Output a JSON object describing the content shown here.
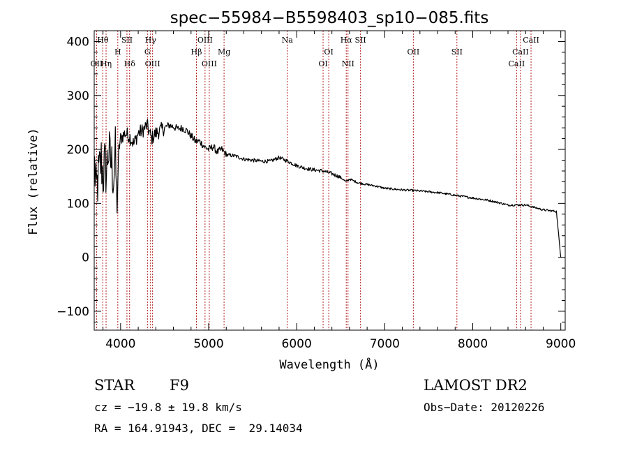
{
  "chart_data": {
    "type": "line",
    "title": "spec−55984−B5598403_sp10−085.fits",
    "xlabel": "Wavelength (Å)",
    "ylabel": "Flux (relative)",
    "xlim": [
      3700,
      9050
    ],
    "ylim": [
      -135,
      420
    ],
    "xticks": [
      4000,
      5000,
      6000,
      7000,
      8000,
      9000
    ],
    "yticks": [
      -100,
      0,
      100,
      200,
      300,
      400
    ],
    "grid": false,
    "line_color": "#000000",
    "marker_color": "#b22222",
    "series": [
      {
        "x": [
          3705,
          3720,
          3740,
          3760,
          3780,
          3800,
          3820,
          3840,
          3860,
          3880,
          3900,
          3920,
          3940,
          3960,
          3980,
          4000,
          4050,
          4100,
          4150,
          4200,
          4250,
          4300,
          4350,
          4400,
          4450,
          4500,
          4550,
          4600,
          4650,
          4700,
          4750,
          4800,
          4850,
          4900,
          4950,
          5000,
          5050,
          5100,
          5150,
          5200,
          5300,
          5400,
          5500,
          5600,
          5700,
          5800,
          5900,
          6000,
          6100,
          6200,
          6300,
          6400,
          6500,
          6560,
          6600,
          6700,
          6800,
          6900,
          7000,
          7200,
          7400,
          7600,
          7800,
          8000,
          8200,
          8400,
          8600,
          8800,
          8950,
          9000
        ],
        "y": [
          170,
          120,
          140,
          160,
          180,
          150,
          170,
          160,
          200,
          180,
          170,
          150,
          190,
          90,
          200,
          220,
          230,
          225,
          210,
          230,
          235,
          245,
          220,
          230,
          235,
          240,
          245,
          242,
          238,
          240,
          235,
          225,
          215,
          215,
          205,
          200,
          205,
          195,
          200,
          190,
          188,
          182,
          180,
          178,
          178,
          185,
          178,
          170,
          165,
          162,
          160,
          155,
          148,
          140,
          145,
          138,
          135,
          132,
          128,
          125,
          123,
          120,
          115,
          110,
          105,
          97,
          97,
          88,
          85,
          0
        ]
      }
    ],
    "lines": [
      {
        "name": "Hθ",
        "x": 3798,
        "row": 1
      },
      {
        "name": "OII",
        "x": 3727,
        "row": 3
      },
      {
        "name": "Hη",
        "x": 3835,
        "row": 3
      },
      {
        "name": "H",
        "x": 3968,
        "row": 2
      },
      {
        "name": "SII",
        "x": 4072,
        "row": 1
      },
      {
        "name": "Hδ",
        "x": 4102,
        "row": 3
      },
      {
        "name": "Hγ",
        "x": 4340,
        "row": 1
      },
      {
        "name": "G",
        "x": 4305,
        "row": 2
      },
      {
        "name": "OIII",
        "x": 4363,
        "row": 3
      },
      {
        "name": "Hβ",
        "x": 4861,
        "row": 2
      },
      {
        "name": "OIII",
        "x": 4959,
        "row": 1
      },
      {
        "name": "OIII",
        "x": 5007,
        "row": 3
      },
      {
        "name": "Mg",
        "x": 5175,
        "row": 2
      },
      {
        "name": "Na",
        "x": 5893,
        "row": 1
      },
      {
        "name": "OI",
        "x": 6300,
        "row": 3
      },
      {
        "name": "OI",
        "x": 6364,
        "row": 2
      },
      {
        "name": "Hα",
        "x": 6563,
        "row": 1
      },
      {
        "name": "NII",
        "x": 6583,
        "row": 3
      },
      {
        "name": "SII",
        "x": 6725,
        "row": 1
      },
      {
        "name": "OII",
        "x": 7325,
        "row": 2
      },
      {
        "name": "SII",
        "x": 7820,
        "row": 2
      },
      {
        "name": "CaII",
        "x": 8498,
        "row": 3
      },
      {
        "name": "CaII",
        "x": 8542,
        "row": 2
      },
      {
        "name": "CaII",
        "x": 8662,
        "row": 1
      }
    ]
  },
  "info": {
    "object_class": "STAR",
    "subclass": "F9",
    "survey": "LAMOST DR2",
    "cz": "cz = −19.8 ± 19.8 km/s",
    "obs_date": "Obs−Date: 20120226",
    "radec": "RA = 164.91943, DEC =  29.14034"
  }
}
